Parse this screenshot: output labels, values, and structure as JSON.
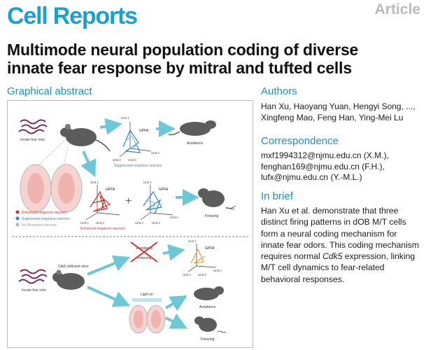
{
  "header": {
    "journal": "Cell Reports",
    "article_type": "Article",
    "title_line1": "Multimode neural population coding of diverse",
    "title_line2": "innate fear response by mitral and tufted cells"
  },
  "graphical_abstract": {
    "heading": "Graphical abstract",
    "labels": {
      "innate_fear_odor_top": "Innate fear odor",
      "innate_fear_odor_bottom": "Innate fear odor",
      "unit1": "Unit 1",
      "unit2": "Unit 2",
      "unit3": "Unit 3",
      "unitn": "Unit n",
      "gpfa": "GPFA",
      "suppressed_caption": "Suppressed response neurons",
      "enhanced_caption": "Enhanced response neurons",
      "avoidance": "Avoidance",
      "freezing": "Freezing",
      "cdk5_mice": "Cdk5 deficient mice",
      "light_on": "Light on"
    },
    "legend": [
      {
        "label": "Enhanced response neurons",
        "color": "#d9312b"
      },
      {
        "label": "Suppressed response neurons",
        "color": "#2f86c8"
      },
      {
        "label": "No Response neurons",
        "color": "#b0b0b0"
      }
    ],
    "colors": {
      "enhanced": "#d9312b",
      "suppressed": "#2f86c8",
      "arrow": "#6cc7d6",
      "orange": "#e8a13a"
    }
  },
  "authors": {
    "heading": "Authors",
    "line1": "Han Xu, Haoyang Yuan, Hengyi Song, ...,",
    "line2": "Xingfeng Mao, Feng Han, Ying-Mei Lu"
  },
  "correspondence": {
    "heading": "Correspondence",
    "line1": "mxf1994312@njmu.edu.cn (X.M.),",
    "line2": "fenghan169@njmu.edu.cn (F.H.),",
    "line3": "lufx@njmu.edu.cn (Y.-M.L.)"
  },
  "in_brief": {
    "heading": "In brief",
    "l1": "Han Xu et al. demonstrate that three",
    "l2": "distinct firing patterns in dOB M/T cells",
    "l3": "form a neural coding mechanism for",
    "l4": "innate fear odors. This coding mechanism",
    "l5a": "requires normal ",
    "l5_italic": "Cdk5",
    "l5b": " expression, linking",
    "l6": "M/T cell dynamics to fear-related",
    "l7": "behavioral responses."
  }
}
